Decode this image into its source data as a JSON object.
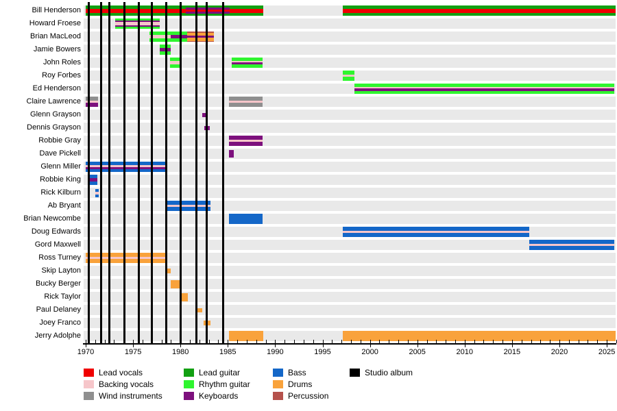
{
  "chart_data": {
    "type": "bar",
    "subtype": "gantt-membership-timeline",
    "title": "",
    "x_axis": {
      "start": 1970,
      "end": 2026,
      "tick_interval_years": 1,
      "label_interval_years": 5,
      "tick_labels": [
        "1970",
        "1975",
        "1980",
        "1985",
        "1990",
        "1995",
        "2000",
        "2005",
        "2010",
        "2015",
        "2020",
        "2025"
      ]
    },
    "album_lines": {
      "label": "Studio album",
      "years": [
        1970.35,
        1971.65,
        1972.5,
        1974.1,
        1975.6,
        1977.0,
        1978.5,
        1980.0,
        1981.65,
        1982.75,
        1984.5
      ]
    },
    "rows": [
      {
        "name": "Bill Henderson",
        "segments": [
          {
            "start": 1970.0,
            "end": 1980.55,
            "stripes": [
              "lead_guitar|3",
              "lead_vocals|4",
              "lead_guitar|3"
            ]
          },
          {
            "start": 1980.55,
            "end": 1985.2,
            "stripes": [
              "lead_guitar|3",
              "keyboards|2",
              "lead_vocals|3",
              "keyboards|2",
              "lead_guitar|3"
            ]
          },
          {
            "start": 1985.2,
            "end": 1988.75,
            "stripes": [
              "lead_guitar|3",
              "lead_vocals|4",
              "lead_guitar|3"
            ]
          },
          {
            "start": 1997.1,
            "end": 2025.9,
            "stripes": [
              "lead_guitar|3",
              "lead_vocals|4",
              "lead_guitar|3"
            ]
          }
        ]
      },
      {
        "name": "Howard Froese",
        "segments": [
          {
            "start": 1973.1,
            "end": 1977.8,
            "stripes": [
              "rhythm_guitar|3",
              "keyboards|1.5",
              "backing_vocals|4",
              "keyboards|1.5",
              "rhythm_guitar|3"
            ]
          }
        ]
      },
      {
        "name": "Brian MacLeod",
        "segments": [
          {
            "start": 1976.7,
            "end": 1979.0,
            "stripes": [
              "rhythm_guitar|3",
              "backing_vocals|3",
              "rhythm_guitar|3"
            ]
          },
          {
            "start": 1979.0,
            "end": 1980.7,
            "stripes": [
              "rhythm_guitar|3",
              "keyboards|2.5",
              "rhythm_guitar|3"
            ]
          },
          {
            "start": 1980.7,
            "end": 1983.5,
            "stripes": [
              "percussion|1",
              "drums|3",
              "keyboards|2",
              "drums|3",
              "percussion|1"
            ]
          }
        ]
      },
      {
        "name": "Jamie Bowers",
        "segments": [
          {
            "start": 1977.8,
            "end": 1979.0,
            "stripes": [
              "rhythm_guitar|3",
              "keyboards|2.5",
              "rhythm_guitar|3"
            ]
          }
        ]
      },
      {
        "name": "John Roles",
        "segments": [
          {
            "start": 1978.9,
            "end": 1980.1,
            "stripes": [
              "rhythm_guitar|3",
              "backing_vocals|2.5",
              "rhythm_guitar|3"
            ]
          },
          {
            "start": 1985.4,
            "end": 1988.7,
            "stripes": [
              "rhythm_guitar|3",
              "backing_vocals|1.5",
              "keyboards|2",
              "rhythm_guitar|3"
            ]
          }
        ]
      },
      {
        "name": "Roy Forbes",
        "segments": [
          {
            "start": 1997.1,
            "end": 1998.4,
            "stripes": [
              "rhythm_guitar|3",
              "backing_vocals|2",
              "rhythm_guitar|3"
            ]
          }
        ]
      },
      {
        "name": "Ed Henderson",
        "segments": [
          {
            "start": 1998.4,
            "end": 2025.8,
            "stripes": [
              "rhythm_guitar|3",
              "backing_vocals|1.5",
              "keyboards|2.5",
              "rhythm_guitar|3"
            ]
          }
        ]
      },
      {
        "name": "Claire Lawrence",
        "segments": [
          {
            "start": 1970.0,
            "end": 1971.3,
            "stripes": [
              "wind_instruments|3",
              "backing_vocals|2",
              "keyboards|3"
            ]
          },
          {
            "start": 1985.1,
            "end": 1988.7,
            "stripes": [
              "wind_instruments|3",
              "backing_vocals|2",
              "wind_instruments|3"
            ]
          }
        ]
      },
      {
        "name": "Glenn Grayson",
        "segments": [
          {
            "start": 1982.3,
            "end": 1982.8,
            "h": 6,
            "stripes": [
              "keyboards|1"
            ]
          }
        ]
      },
      {
        "name": "Dennis Grayson",
        "segments": [
          {
            "start": 1982.5,
            "end": 1983.1,
            "h": 6,
            "stripes": [
              "keyboards|1"
            ]
          }
        ]
      },
      {
        "name": "Robbie Gray",
        "segments": [
          {
            "start": 1985.1,
            "end": 1988.7,
            "stripes": [
              "keyboards|3",
              "backing_vocals|2",
              "keyboards|3"
            ]
          }
        ]
      },
      {
        "name": "Dave Pickell",
        "segments": [
          {
            "start": 1985.1,
            "end": 1985.6,
            "h": 11,
            "stripes": [
              "keyboards|1"
            ]
          }
        ]
      },
      {
        "name": "Glenn Miller",
        "segments": [
          {
            "start": 1970.0,
            "end": 1978.4,
            "stripes": [
              "bass|3",
              "backing_vocals|2",
              "keyboards|2",
              "bass|3"
            ]
          }
        ]
      },
      {
        "name": "Robbie King",
        "segments": [
          {
            "start": 1970.4,
            "end": 1971.2,
            "stripes": [
              "bass|2",
              "keyboards|2",
              "bass|2"
            ]
          }
        ]
      },
      {
        "name": "Rick Kilburn",
        "segments": [
          {
            "start": 1971.0,
            "end": 1971.4,
            "h": 12,
            "stripes": [
              "bass|2",
              "backing_vocals|2",
              "bass|2"
            ]
          }
        ]
      },
      {
        "name": "Ab Bryant",
        "segments": [
          {
            "start": 1978.4,
            "end": 1983.2,
            "stripes": [
              "bass|3",
              "backing_vocals|2",
              "bass|3"
            ]
          }
        ]
      },
      {
        "name": "Brian Newcombe",
        "segments": [
          {
            "start": 1985.1,
            "end": 1988.7,
            "stripes": [
              "bass|1"
            ]
          }
        ]
      },
      {
        "name": "Doug Edwards",
        "segments": [
          {
            "start": 1997.1,
            "end": 2016.8,
            "stripes": [
              "bass|3",
              "backing_vocals|2",
              "bass|3"
            ]
          }
        ]
      },
      {
        "name": "Gord Maxwell",
        "segments": [
          {
            "start": 2016.8,
            "end": 2025.8,
            "stripes": [
              "bass|3",
              "backing_vocals|2",
              "bass|3"
            ]
          }
        ]
      },
      {
        "name": "Ross Turney",
        "segments": [
          {
            "start": 1970.0,
            "end": 1978.5,
            "stripes": [
              "drums|3",
              "backing_vocals|2",
              "drums|3"
            ]
          }
        ]
      },
      {
        "name": "Skip Layton",
        "segments": [
          {
            "start": 1978.5,
            "end": 1979.0,
            "h": 7,
            "stripes": [
              "drums|1"
            ]
          }
        ]
      },
      {
        "name": "Bucky Berger",
        "segments": [
          {
            "start": 1979.0,
            "end": 1980.0,
            "h": 12,
            "stripes": [
              "drums|1"
            ]
          }
        ]
      },
      {
        "name": "Rick Taylor",
        "segments": [
          {
            "start": 1980.0,
            "end": 1980.75,
            "h": 12,
            "stripes": [
              "drums|1"
            ]
          }
        ]
      },
      {
        "name": "Paul Delaney",
        "segments": [
          {
            "start": 1981.6,
            "end": 1982.3,
            "h": 6,
            "stripes": [
              "drums|1"
            ]
          }
        ]
      },
      {
        "name": "Joey Franco",
        "segments": [
          {
            "start": 1982.45,
            "end": 1983.2,
            "h": 7,
            "stripes": [
              "drums|1"
            ]
          }
        ]
      },
      {
        "name": "Jerry Adolphe",
        "segments": [
          {
            "start": 1985.1,
            "end": 1988.75,
            "stripes": [
              "drums|1"
            ]
          },
          {
            "start": 1997.1,
            "end": 2025.95,
            "stripes": [
              "drums|1"
            ]
          }
        ]
      }
    ],
    "legend_position": "bottom",
    "grid": "vertical album lines only"
  },
  "legend": {
    "columns": [
      [
        {
          "label": "Lead vocals",
          "color": "lead_vocals"
        },
        {
          "label": "Backing vocals",
          "color": "backing_vocals"
        },
        {
          "label": "Wind instruments",
          "color": "wind_instruments"
        }
      ],
      [
        {
          "label": "Lead guitar",
          "color": "lead_guitar"
        },
        {
          "label": "Rhythm guitar",
          "color": "rhythm_guitar"
        },
        {
          "label": "Keyboards",
          "color": "keyboards"
        }
      ],
      [
        {
          "label": "Bass",
          "color": "bass"
        },
        {
          "label": "Drums",
          "color": "drums"
        },
        {
          "label": "Percussion",
          "color": "percussion"
        }
      ],
      [
        {
          "label": "Studio album",
          "color": "studio_album"
        }
      ]
    ]
  },
  "colors": {
    "lead_vocals": "#f00000",
    "backing_vocals": "#f6c6ca",
    "wind_instruments": "#8f8f8f",
    "lead_guitar": "#12a012",
    "rhythm_guitar": "#2ff52f",
    "keyboards": "#7d107d",
    "bass": "#1467c8",
    "drums": "#f9a23b",
    "percussion": "#b5524c",
    "studio_album": "#000000",
    "row_band": "#e9e9e9",
    "axis": "#000000"
  }
}
